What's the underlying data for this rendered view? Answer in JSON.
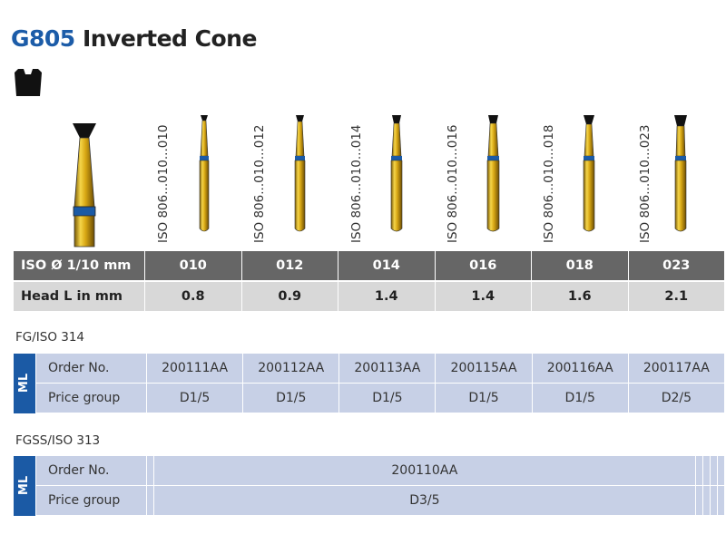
{
  "title": {
    "code": "G805",
    "name": "Inverted Cone"
  },
  "icons": {
    "shape": "inverted-cone-shape-icon"
  },
  "iso_labels": [
    "ISO 806...010...010",
    "ISO 806...010...012",
    "ISO 806...010...014",
    "ISO 806...010...016",
    "ISO 806...010...018",
    "ISO 806...010...023"
  ],
  "spec": {
    "row1_label": "ISO Ø 1/10 mm",
    "row2_label": "Head L in mm",
    "sizes": [
      "010",
      "012",
      "014",
      "016",
      "018",
      "023"
    ],
    "lengths": [
      "0.8",
      "0.9",
      "1.4",
      "1.4",
      "1.6",
      "2.1"
    ]
  },
  "fg": {
    "label": "FG/ISO 314",
    "ml": "ML",
    "order_label": "Order No.",
    "price_label": "Price group",
    "orders": [
      "200111AA",
      "200112AA",
      "200113AA",
      "200115AA",
      "200116AA",
      "200117AA"
    ],
    "prices": [
      "D1/5",
      "D1/5",
      "D1/5",
      "D1/5",
      "D1/5",
      "D2/5"
    ]
  },
  "fgss": {
    "label": "FGSS/ISO 313",
    "ml": "ML",
    "order_label": "Order No.",
    "price_label": "Price group",
    "orders": [
      "",
      "200110AA",
      "",
      "",
      "",
      ""
    ],
    "prices": [
      "",
      "D3/5",
      "",
      "",
      "",
      ""
    ]
  },
  "colors": {
    "accent_blue": "#1b5aa5",
    "title_blue": "#1c5ca8",
    "gold": "#d4a514",
    "header_grey": "#666666",
    "row_grey": "#d8d8d8",
    "table_blue": "#c7d0e6"
  }
}
